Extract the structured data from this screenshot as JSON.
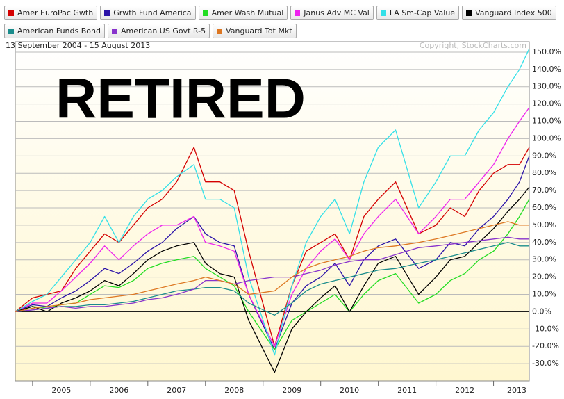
{
  "chart_data": {
    "type": "line",
    "subtitle": "13 September 2004 - 15 August 2013",
    "source": "Copyright, StockCharts.com",
    "annotation": "RETIRED",
    "legend": "top-left",
    "grid": true,
    "x": [
      2004.7,
      2005.0,
      2005.25,
      2005.5,
      2005.75,
      2006.0,
      2006.25,
      2006.5,
      2006.75,
      2007.0,
      2007.25,
      2007.5,
      2007.8,
      2008.0,
      2008.25,
      2008.5,
      2008.75,
      2009.2,
      2009.5,
      2009.75,
      2010.0,
      2010.25,
      2010.5,
      2010.75,
      2011.0,
      2011.3,
      2011.7,
      2012.0,
      2012.25,
      2012.5,
      2012.75,
      2013.0,
      2013.25,
      2013.45,
      2013.62
    ],
    "xlim": [
      2004.7,
      2013.62
    ],
    "xticks": [
      2005,
      2006,
      2007,
      2008,
      2009,
      2010,
      2011,
      2012,
      2013
    ],
    "ylim": [
      -40,
      156
    ],
    "yticks": [
      {
        "value": -30,
        "label": "-30.0%"
      },
      {
        "value": -20,
        "label": "-20.0%"
      },
      {
        "value": -10,
        "label": "-10.0%"
      },
      {
        "value": 0,
        "label": "0.0%"
      },
      {
        "value": 10,
        "label": "10.0%"
      },
      {
        "value": 20,
        "label": "20.0%"
      },
      {
        "value": 30,
        "label": "30.0%"
      },
      {
        "value": 40,
        "label": "40.0%"
      },
      {
        "value": 50,
        "label": "50.0%"
      },
      {
        "value": 60,
        "label": "60.0%"
      },
      {
        "value": 70,
        "label": "70.0%"
      },
      {
        "value": 80,
        "label": "80.0%"
      },
      {
        "value": 90,
        "label": "90.0%"
      },
      {
        "value": 100,
        "label": "100.0%"
      },
      {
        "value": 110,
        "label": "110.0%"
      },
      {
        "value": 120,
        "label": "120.0%"
      },
      {
        "value": 130,
        "label": "130.0%"
      },
      {
        "value": 140,
        "label": "140.0%"
      },
      {
        "value": 150,
        "label": "150.0%"
      }
    ],
    "series": [
      {
        "name": "Amer EuroPac Gwth",
        "color": "#d40000",
        "values": [
          0,
          8,
          10,
          12,
          25,
          35,
          45,
          40,
          50,
          60,
          65,
          75,
          95,
          75,
          75,
          70,
          35,
          -20,
          15,
          35,
          40,
          45,
          30,
          55,
          65,
          75,
          45,
          50,
          60,
          55,
          70,
          80,
          85,
          85,
          95
        ]
      },
      {
        "name": "Grwth Fund America",
        "color": "#2a12a8",
        "values": [
          0,
          4,
          3,
          8,
          12,
          18,
          25,
          22,
          28,
          35,
          40,
          48,
          55,
          45,
          40,
          38,
          10,
          -22,
          5,
          15,
          20,
          28,
          15,
          30,
          38,
          42,
          25,
          30,
          40,
          38,
          48,
          55,
          65,
          75,
          90
        ]
      },
      {
        "name": "Amer Wash Mutual",
        "color": "#22dd22",
        "values": [
          0,
          3,
          2,
          4,
          5,
          10,
          15,
          14,
          18,
          25,
          28,
          30,
          32,
          25,
          20,
          15,
          0,
          -22,
          -5,
          0,
          5,
          10,
          0,
          10,
          18,
          22,
          5,
          10,
          18,
          22,
          30,
          35,
          45,
          55,
          65
        ]
      },
      {
        "name": "Janus Adv MC Val",
        "color": "#ee22ee",
        "values": [
          0,
          5,
          5,
          12,
          20,
          28,
          38,
          30,
          38,
          45,
          50,
          50,
          55,
          40,
          38,
          35,
          10,
          -20,
          10,
          25,
          35,
          42,
          30,
          45,
          55,
          65,
          45,
          55,
          65,
          65,
          75,
          85,
          100,
          110,
          118
        ]
      },
      {
        "name": "LA Sm-Cap Value",
        "color": "#33e0e8",
        "values": [
          0,
          6,
          10,
          20,
          30,
          40,
          55,
          40,
          55,
          65,
          70,
          78,
          85,
          65,
          65,
          60,
          20,
          -25,
          15,
          40,
          55,
          65,
          45,
          75,
          95,
          105,
          60,
          75,
          90,
          90,
          105,
          115,
          130,
          140,
          152
        ]
      },
      {
        "name": "Vanguard Index 500",
        "color": "#000000",
        "values": [
          0,
          3,
          0,
          5,
          8,
          12,
          18,
          15,
          22,
          30,
          35,
          38,
          40,
          28,
          22,
          20,
          -5,
          -35,
          -10,
          0,
          8,
          15,
          0,
          15,
          28,
          32,
          10,
          20,
          30,
          32,
          40,
          48,
          58,
          65,
          72
        ]
      },
      {
        "name": "American Funds Bond",
        "color": "#1a8c8c",
        "values": [
          0,
          1,
          2,
          3,
          3,
          4,
          4,
          5,
          6,
          8,
          10,
          12,
          13,
          14,
          14,
          12,
          5,
          -2,
          5,
          12,
          16,
          18,
          20,
          22,
          24,
          25,
          28,
          30,
          32,
          34,
          36,
          38,
          40,
          38,
          38
        ]
      },
      {
        "name": "American US Govt R-5",
        "color": "#8833cc",
        "values": [
          0,
          1,
          2,
          3,
          2,
          3,
          3,
          4,
          5,
          7,
          8,
          10,
          13,
          18,
          18,
          16,
          18,
          20,
          20,
          22,
          24,
          27,
          29,
          30,
          30,
          33,
          37,
          38,
          39,
          40,
          41,
          42,
          43,
          42,
          42
        ]
      },
      {
        "name": "Vanguard Tot Mkt",
        "color": "#dd7722",
        "values": [
          0,
          2,
          3,
          4,
          5,
          7,
          8,
          9,
          10,
          12,
          14,
          16,
          18,
          20,
          18,
          16,
          10,
          12,
          20,
          25,
          28,
          30,
          32,
          35,
          37,
          38,
          40,
          42,
          44,
          46,
          48,
          50,
          52,
          50,
          50
        ]
      }
    ]
  }
}
